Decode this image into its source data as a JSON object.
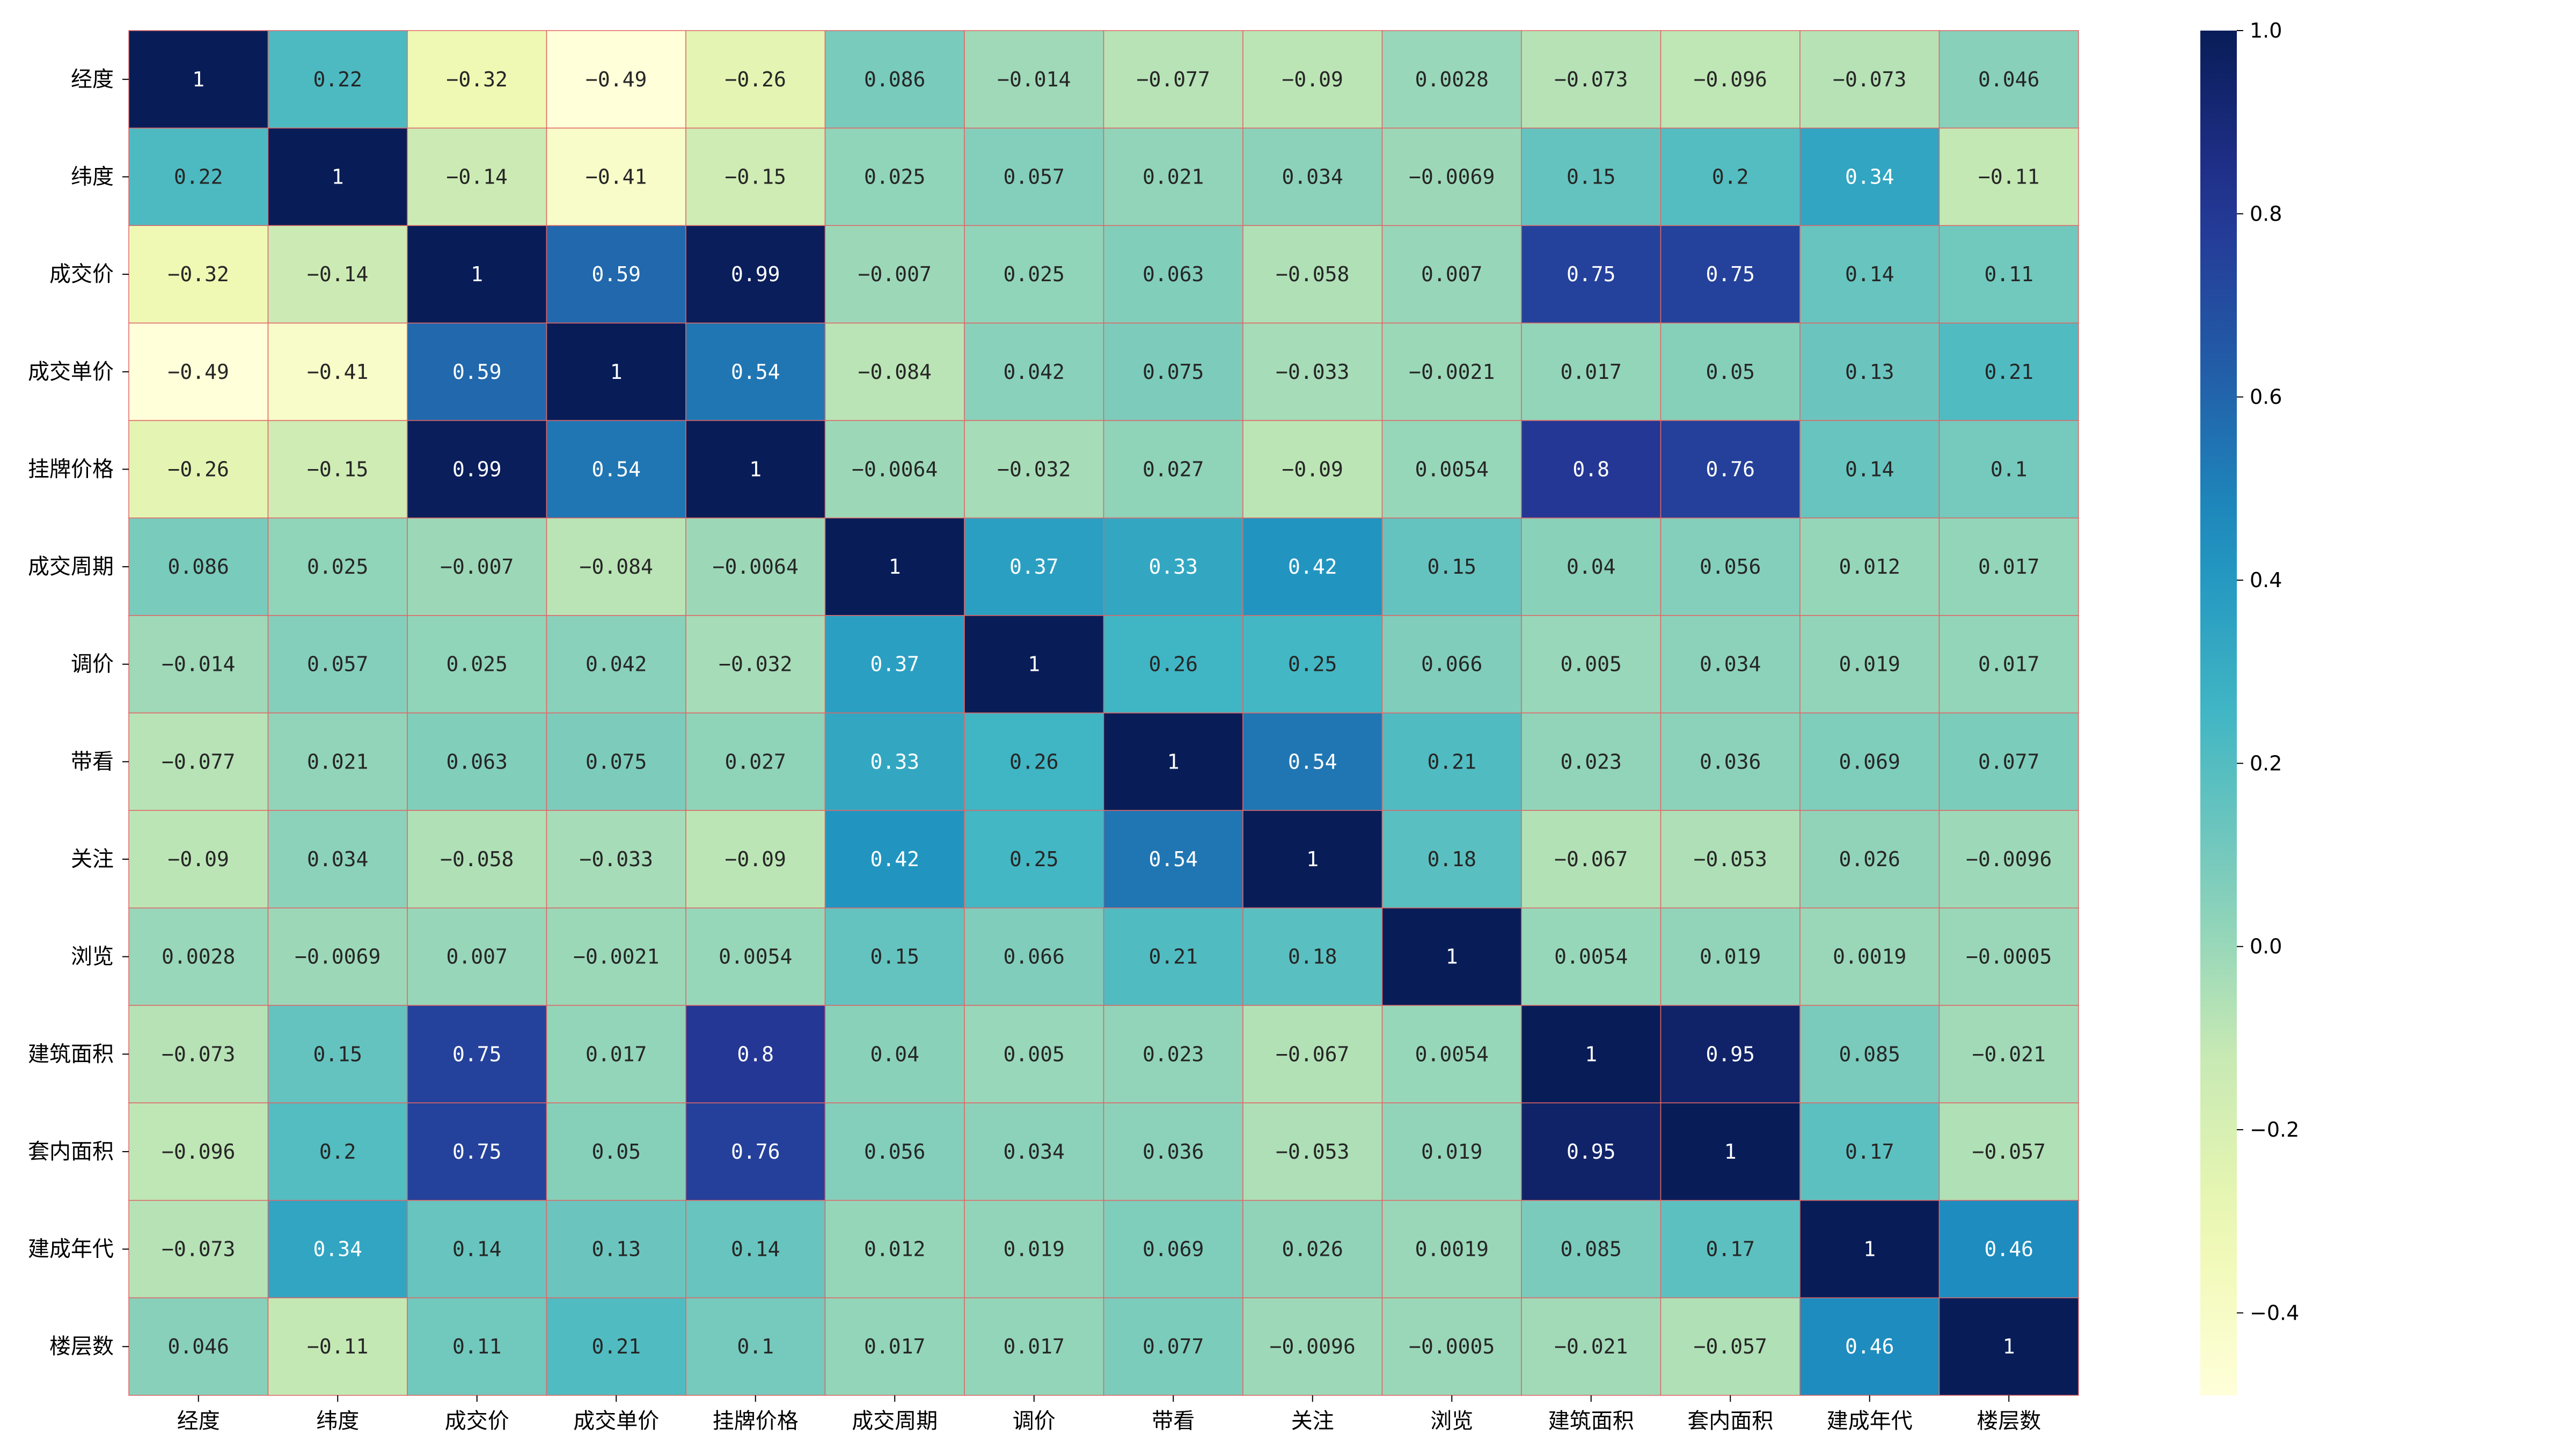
{
  "chart_data": {
    "type": "heatmap",
    "title": "",
    "xlabel": "",
    "ylabel": "",
    "colormap": "YlGnBu",
    "grid_line_color": "#e06666",
    "categories": [
      "经度",
      "纬度",
      "成交价",
      "成交单价",
      "挂牌价格",
      "成交周期",
      "调价",
      "带看",
      "关注",
      "浏览",
      "建筑面积",
      "套内面积",
      "建成年代",
      "楼层数"
    ],
    "labels": [
      [
        "1",
        "0.22",
        "-0.32",
        "-0.49",
        "-0.26",
        "0.086",
        "-0.014",
        "-0.077",
        "-0.09",
        "0.0028",
        "-0.073",
        "-0.096",
        "-0.073",
        "0.046"
      ],
      [
        "0.22",
        "1",
        "-0.14",
        "-0.41",
        "-0.15",
        "0.025",
        "0.057",
        "0.021",
        "0.034",
        "-0.0069",
        "0.15",
        "0.2",
        "0.34",
        "-0.11"
      ],
      [
        "-0.32",
        "-0.14",
        "1",
        "0.59",
        "0.99",
        "-0.007",
        "0.025",
        "0.063",
        "-0.058",
        "0.007",
        "0.75",
        "0.75",
        "0.14",
        "0.11"
      ],
      [
        "-0.49",
        "-0.41",
        "0.59",
        "1",
        "0.54",
        "-0.084",
        "0.042",
        "0.075",
        "-0.033",
        "-0.0021",
        "0.017",
        "0.05",
        "0.13",
        "0.21"
      ],
      [
        "-0.26",
        "-0.15",
        "0.99",
        "0.54",
        "1",
        "-0.0064",
        "-0.032",
        "0.027",
        "-0.09",
        "0.0054",
        "0.8",
        "0.76",
        "0.14",
        "0.1"
      ],
      [
        "0.086",
        "0.025",
        "-0.007",
        "-0.084",
        "-0.0064",
        "1",
        "0.37",
        "0.33",
        "0.42",
        "0.15",
        "0.04",
        "0.056",
        "0.012",
        "0.017"
      ],
      [
        "-0.014",
        "0.057",
        "0.025",
        "0.042",
        "-0.032",
        "0.37",
        "1",
        "0.26",
        "0.25",
        "0.066",
        "0.005",
        "0.034",
        "0.019",
        "0.017"
      ],
      [
        "-0.077",
        "0.021",
        "0.063",
        "0.075",
        "0.027",
        "0.33",
        "0.26",
        "1",
        "0.54",
        "0.21",
        "0.023",
        "0.036",
        "0.069",
        "0.077"
      ],
      [
        "-0.09",
        "0.034",
        "-0.058",
        "-0.033",
        "-0.09",
        "0.42",
        "0.25",
        "0.54",
        "1",
        "0.18",
        "-0.067",
        "-0.053",
        "0.026",
        "-0.0096"
      ],
      [
        "0.0028",
        "-0.0069",
        "0.007",
        "-0.0021",
        "0.0054",
        "0.15",
        "0.066",
        "0.21",
        "0.18",
        "1",
        "0.0054",
        "0.019",
        "0.0019",
        "-0.0005"
      ],
      [
        "-0.073",
        "0.15",
        "0.75",
        "0.017",
        "0.8",
        "0.04",
        "0.005",
        "0.023",
        "-0.067",
        "0.0054",
        "1",
        "0.95",
        "0.085",
        "-0.021"
      ],
      [
        "-0.096",
        "0.2",
        "0.75",
        "0.05",
        "0.76",
        "0.056",
        "0.034",
        "0.036",
        "-0.053",
        "0.019",
        "0.95",
        "1",
        "0.17",
        "-0.057"
      ],
      [
        "-0.073",
        "0.34",
        "0.14",
        "0.13",
        "0.14",
        "0.012",
        "0.019",
        "0.069",
        "0.026",
        "0.0019",
        "0.085",
        "0.17",
        "1",
        "0.46"
      ],
      [
        "0.046",
        "-0.11",
        "0.11",
        "0.21",
        "0.1",
        "0.017",
        "0.017",
        "0.077",
        "-0.0096",
        "-0.0005",
        "-0.021",
        "-0.057",
        "0.46",
        "1"
      ]
    ],
    "colorbar": {
      "range": [
        -0.49,
        1.0
      ],
      "ticks": [
        -0.4,
        -0.2,
        0.0,
        0.2,
        0.4,
        0.6,
        0.8,
        1.0
      ],
      "tick_labels": [
        "−0.4",
        "−0.2",
        "0.0",
        "0.2",
        "0.4",
        "0.6",
        "0.8",
        "1.0"
      ]
    }
  }
}
